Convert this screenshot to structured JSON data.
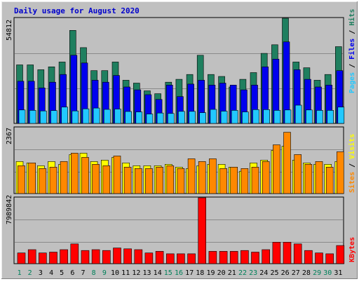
{
  "chart_data": [
    {
      "type": "bar",
      "title": "Daily usage for August 2020",
      "panel": "hits-files-pages",
      "ymax_label": "54812",
      "ylim": [
        0,
        54812
      ],
      "grid": true,
      "categories": [
        "1",
        "2",
        "3",
        "4",
        "5",
        "6",
        "7",
        "8",
        "9",
        "10",
        "11",
        "12",
        "13",
        "14",
        "15",
        "16",
        "17",
        "18",
        "19",
        "20",
        "21",
        "22",
        "23",
        "24",
        "25",
        "26",
        "27",
        "28",
        "29",
        "30",
        "31"
      ],
      "weekend_days": [
        "1",
        "2",
        "8",
        "9",
        "15",
        "16",
        "22",
        "23",
        "29",
        "30"
      ],
      "legend_labels": {
        "pages": "Pages",
        "files": "Files",
        "hits": "Hits",
        "sep": " / "
      },
      "series": [
        {
          "name": "Hits",
          "color": "#1f7f5f",
          "values": [
            30500,
            30500,
            28000,
            29500,
            32000,
            48500,
            39500,
            27500,
            27500,
            32000,
            22500,
            21000,
            17000,
            15500,
            21500,
            23000,
            25500,
            35500,
            25500,
            24500,
            19000,
            23000,
            26500,
            36500,
            41000,
            54812,
            32000,
            29000,
            22500,
            25500,
            40000
          ]
        },
        {
          "name": "Files",
          "color": "#0000ee",
          "values": [
            22000,
            22000,
            18500,
            21500,
            25500,
            35500,
            31500,
            22500,
            21500,
            25000,
            19000,
            17500,
            15000,
            12500,
            20000,
            14000,
            20500,
            22500,
            20000,
            21000,
            20000,
            17500,
            20000,
            29500,
            33500,
            42500,
            28000,
            23000,
            19000,
            20000,
            27500
          ]
        },
        {
          "name": "Pages",
          "color": "#22c8ff",
          "values": [
            7000,
            6800,
            6500,
            6700,
            8500,
            6500,
            7600,
            8000,
            7300,
            7500,
            6200,
            6000,
            4900,
            5400,
            5200,
            6300,
            6300,
            5600,
            7300,
            6400,
            6800,
            6000,
            7200,
            7200,
            6800,
            7000,
            9500,
            7000,
            6800,
            6800,
            8500
          ]
        }
      ]
    },
    {
      "type": "bar",
      "panel": "visits-sites",
      "ymax_label": "2367",
      "ylim": [
        0,
        2367
      ],
      "grid": true,
      "categories": [
        "1",
        "2",
        "3",
        "4",
        "5",
        "6",
        "7",
        "8",
        "9",
        "10",
        "11",
        "12",
        "13",
        "14",
        "15",
        "16",
        "17",
        "18",
        "19",
        "20",
        "21",
        "22",
        "23",
        "24",
        "25",
        "26",
        "27",
        "28",
        "29",
        "30",
        "31"
      ],
      "legend_labels": {
        "sites": "Sites",
        "visits": "Visits",
        "sep": " / "
      },
      "series": [
        {
          "name": "Visits",
          "color": "#ffff00",
          "values": [
            1150,
            1100,
            1000,
            1150,
            1050,
            1400,
            1450,
            1150,
            1200,
            1300,
            1100,
            1000,
            1000,
            1000,
            1050,
            950,
            900,
            1000,
            1050,
            1050,
            950,
            800,
            1100,
            1200,
            1550,
            1700,
            1200,
            1100,
            1050,
            1050,
            1150
          ]
        },
        {
          "name": "Sites",
          "color": "#ff8800",
          "values": [
            1000,
            1100,
            900,
            950,
            1150,
            1450,
            1300,
            1050,
            1000,
            1350,
            950,
            900,
            900,
            950,
            1000,
            900,
            1250,
            1150,
            1250,
            900,
            950,
            900,
            950,
            1150,
            1750,
            2200,
            1400,
            1050,
            1150,
            950,
            1500
          ]
        }
      ]
    },
    {
      "type": "bar",
      "panel": "kbytes",
      "ymax_label": "7989842",
      "ylim": [
        0,
        7989842
      ],
      "grid": true,
      "categories": [
        "1",
        "2",
        "3",
        "4",
        "5",
        "6",
        "7",
        "8",
        "9",
        "10",
        "11",
        "12",
        "13",
        "14",
        "15",
        "16",
        "17",
        "18",
        "19",
        "20",
        "21",
        "22",
        "23",
        "24",
        "25",
        "26",
        "27",
        "28",
        "29",
        "30",
        "31"
      ],
      "legend_labels": {
        "kbytes": "KBytes"
      },
      "series": [
        {
          "name": "KBytes",
          "color": "#ff0000",
          "values": [
            1300000,
            1700000,
            1300000,
            1400000,
            1700000,
            2400000,
            1600000,
            1700000,
            1600000,
            1900000,
            1800000,
            1700000,
            1300000,
            1500000,
            1200000,
            1200000,
            1200000,
            7989842,
            1500000,
            1500000,
            1500000,
            1600000,
            1400000,
            1700000,
            2600000,
            2600000,
            2400000,
            1600000,
            1300000,
            1200000,
            2200000
          ]
        }
      ]
    }
  ]
}
